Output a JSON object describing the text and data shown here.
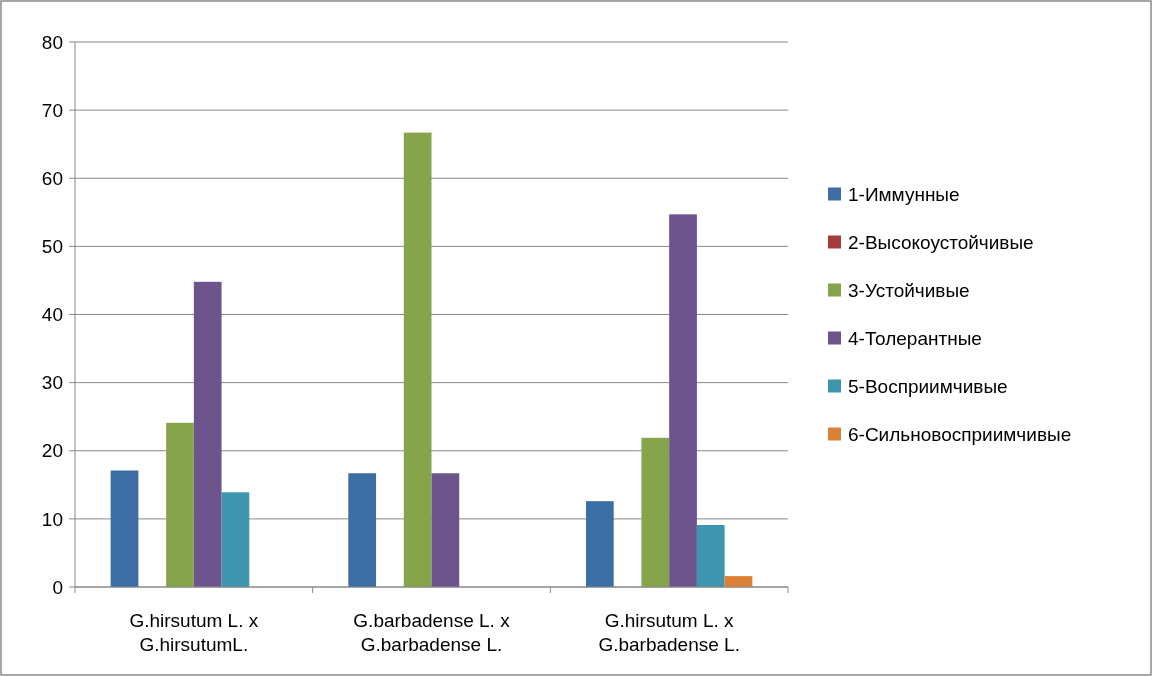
{
  "chart_data": {
    "type": "bar",
    "categories": [
      "G.hirsutum L. x\nG.hirsutumL.",
      "G.barbadense L. x\nG.barbadense L.",
      "G.hirsutum L. x\nG.barbadense L."
    ],
    "series": [
      {
        "name": "1-Иммунные",
        "color": "#3c6ea5",
        "values": [
          17.1,
          16.7,
          12.6
        ]
      },
      {
        "name": "2-Высокоустойчивые",
        "color": "#a53c3a",
        "values": [
          0,
          0,
          0
        ]
      },
      {
        "name": "3-Устойчивые",
        "color": "#86a44a",
        "values": [
          24.1,
          66.7,
          21.9
        ]
      },
      {
        "name": "4-Толерантные",
        "color": "#6e548d",
        "values": [
          44.8,
          16.7,
          54.7
        ]
      },
      {
        "name": "5-Восприимчивые",
        "color": "#3d96ae",
        "values": [
          13.9,
          0,
          9.1
        ]
      },
      {
        "name": "6-Сильновосприимчивые",
        "color": "#da8137",
        "values": [
          0,
          0,
          1.6
        ]
      }
    ],
    "ylim": [
      0,
      80
    ],
    "yticks": [
      0,
      10,
      20,
      30,
      40,
      50,
      60,
      70,
      80
    ],
    "grid": "y",
    "legend": "right"
  }
}
